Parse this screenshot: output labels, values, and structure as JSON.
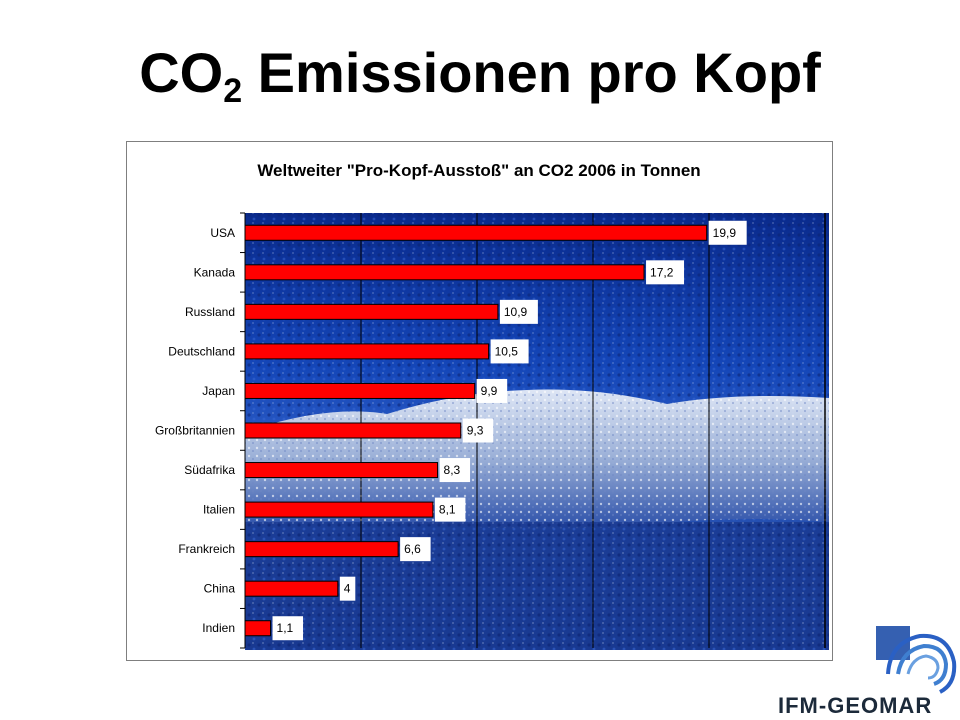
{
  "slide": {
    "title_main": "CO",
    "title_sub": "2",
    "title_rest": " Emissionen pro Kopf"
  },
  "logo": {
    "text": "IFM-GEOMAR",
    "color": "#1c2a3a",
    "accent": "#3f7fd0"
  },
  "chart_data": {
    "type": "bar",
    "orientation": "horizontal",
    "title": "Weltweiter \"Pro-Kopf-Ausstoß\" an CO2 2006 in Tonnen",
    "categories": [
      "USA",
      "Kanada",
      "Russland",
      "Deutschland",
      "Japan",
      "Großbritannien",
      "Südafrika",
      "Italien",
      "Frankreich",
      "China",
      "Indien"
    ],
    "values": [
      19.9,
      17.2,
      10.9,
      10.5,
      9.9,
      9.3,
      8.3,
      8.1,
      6.6,
      4,
      1.1
    ],
    "value_labels": [
      "19,9",
      "17,2",
      "10,9",
      "10,5",
      "9,9",
      "9,3",
      "8,3",
      "8,1",
      "6,6",
      "4",
      "1,1"
    ],
    "xlim": [
      0,
      25
    ],
    "gridlines": [
      5,
      10,
      15,
      20
    ],
    "bar_color": "#ff0000",
    "background": "photo-winter-forest",
    "grid": true,
    "legend": "none"
  }
}
